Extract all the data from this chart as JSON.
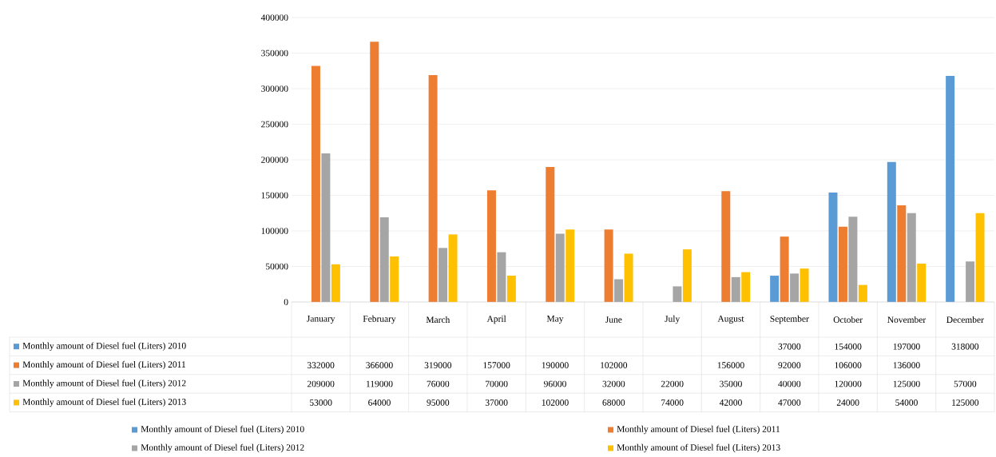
{
  "chart_data": {
    "type": "bar",
    "categories": [
      "January",
      "February",
      "March",
      "April",
      "May",
      "June",
      "July",
      "August",
      "September",
      "October",
      "November",
      "December"
    ],
    "series": [
      {
        "name": "Monthly amount of Diesel fuel (Liters) 2010",
        "color": "#5b9bd5",
        "values": [
          null,
          null,
          null,
          null,
          null,
          null,
          null,
          null,
          37000,
          154000,
          197000,
          318000
        ]
      },
      {
        "name": "Monthly amount of Diesel fuel (Liters) 2011",
        "color": "#ed7d31",
        "values": [
          332000,
          366000,
          319000,
          157000,
          190000,
          102000,
          null,
          156000,
          92000,
          106000,
          136000,
          null
        ]
      },
      {
        "name": "Monthly amount of Diesel fuel (Liters) 2012",
        "color": "#a5a5a5",
        "values": [
          209000,
          119000,
          76000,
          70000,
          96000,
          32000,
          22000,
          35000,
          40000,
          120000,
          125000,
          57000
        ]
      },
      {
        "name": "Monthly amount of Diesel fuel (Liters) 2013",
        "color": "#ffc000",
        "values": [
          53000,
          64000,
          95000,
          37000,
          102000,
          68000,
          74000,
          42000,
          47000,
          24000,
          54000,
          125000
        ]
      }
    ],
    "ylim": [
      0,
      400000
    ],
    "yticks": [
      0,
      50000,
      100000,
      150000,
      200000,
      250000,
      300000,
      350000,
      400000
    ],
    "grid": "y",
    "legend": "bottom",
    "data_labels": true
  }
}
